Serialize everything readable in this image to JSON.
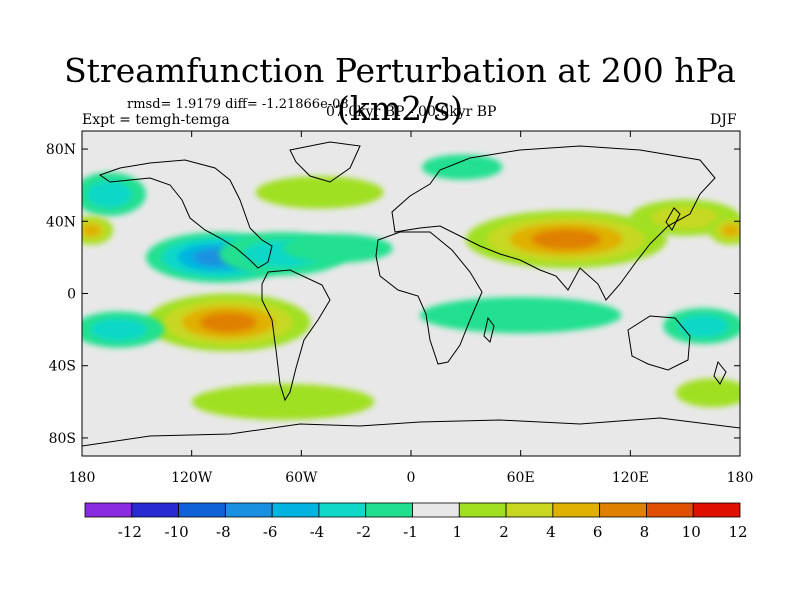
{
  "chart_data": {
    "type": "heatmap",
    "title": "Streamfunction Perturbation at 200 hPa (km2/s)",
    "stats_text": "rmsd= 1.9179 diff= -1.21866e-08",
    "experiment_text": "Expt = temgh-temga",
    "period_text": "07.0kyr BP - 00.0kyr BP",
    "season_text": "DJF",
    "x_ticks": [
      "180",
      "120W",
      "60W",
      "0",
      "60E",
      "120E",
      "180"
    ],
    "y_ticks": [
      "80N",
      "40N",
      "0",
      "40S",
      "80S"
    ],
    "x_range": [
      -180,
      180
    ],
    "y_range": [
      -90,
      90
    ],
    "colorbar": {
      "levels": [
        "-12",
        "-10",
        "-8",
        "-6",
        "-4",
        "-2",
        "-1",
        "1",
        "2",
        "4",
        "6",
        "8",
        "10",
        "12"
      ],
      "colors": [
        "#8a2be2",
        "#2a2ad2",
        "#1060d8",
        "#1a90e0",
        "#00b4e0",
        "#10d8c8",
        "#20e090",
        "#e8e8e8",
        "#a0e020",
        "#c8d820",
        "#e0b000",
        "#e08000",
        "#e05000",
        "#e01000"
      ]
    },
    "anomaly_regions": [
      {
        "lon": -105,
        "lat": 20,
        "rx": 40,
        "ry": 14,
        "value": -6
      },
      {
        "lon": -70,
        "lat": 22,
        "rx": 35,
        "ry": 12,
        "value": -3
      },
      {
        "lon": -40,
        "lat": 25,
        "rx": 30,
        "ry": 8,
        "value": -1.5
      },
      {
        "lon": -165,
        "lat": 55,
        "rx": 20,
        "ry": 12,
        "value": -2
      },
      {
        "lon": -50,
        "lat": 56,
        "rx": 35,
        "ry": 9,
        "value": 1.5
      },
      {
        "lon": 28,
        "lat": 70,
        "rx": 22,
        "ry": 7,
        "value": -1.5
      },
      {
        "lon": 85,
        "lat": 30,
        "rx": 55,
        "ry": 16,
        "value": 6
      },
      {
        "lon": 150,
        "lat": 42,
        "rx": 30,
        "ry": 10,
        "value": 2
      },
      {
        "lon": 175,
        "lat": 35,
        "rx": 12,
        "ry": 8,
        "value": 4
      },
      {
        "lon": -175,
        "lat": 35,
        "rx": 12,
        "ry": 8,
        "value": 4
      },
      {
        "lon": -100,
        "lat": -16,
        "rx": 45,
        "ry": 16,
        "value": 6
      },
      {
        "lon": -160,
        "lat": -20,
        "rx": 25,
        "ry": 10,
        "value": -2
      },
      {
        "lon": 60,
        "lat": -12,
        "rx": 55,
        "ry": 10,
        "value": -1.5
      },
      {
        "lon": 160,
        "lat": -18,
        "rx": 22,
        "ry": 10,
        "value": -2
      },
      {
        "lon": -70,
        "lat": -60,
        "rx": 50,
        "ry": 10,
        "value": 1.5
      },
      {
        "lon": 165,
        "lat": -55,
        "rx": 20,
        "ry": 8,
        "value": 1.5
      }
    ]
  }
}
